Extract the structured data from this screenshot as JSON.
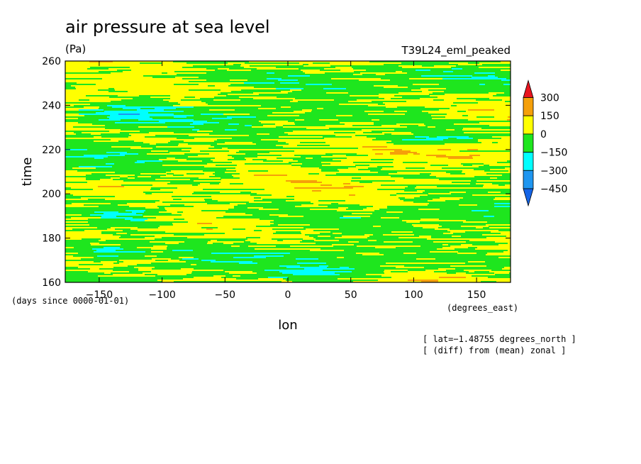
{
  "chart_data": {
    "type": "heatmap",
    "title": "air pressure at sea level",
    "subtitle": "(Pa)",
    "run_label": "T39L24_eml_peaked",
    "xlabel": "lon",
    "x_units": "(degrees_east)",
    "ylabel": "time",
    "y_units": "(days since 0000-01-01)",
    "xlim": [
      -177,
      177
    ],
    "ylim": [
      160,
      260
    ],
    "x_ticks": [
      "-150",
      "-100",
      "-50",
      "0",
      "50",
      "100",
      "150"
    ],
    "x_tick_values": [
      -150,
      -100,
      -50,
      0,
      50,
      100,
      150
    ],
    "y_ticks": [
      "160",
      "180",
      "200",
      "220",
      "240",
      "260"
    ],
    "y_tick_values": [
      160,
      180,
      200,
      220,
      240,
      260
    ],
    "colorbar": {
      "labels": [
        "300",
        "150",
        "0",
        "−150",
        "−300",
        "−450"
      ],
      "colors": [
        "#e8141e",
        "#f5a00a",
        "#ffff00",
        "#1ee61e",
        "#00ffff",
        "#1e96f0",
        "#1464e6"
      ],
      "intervals": [
        ">300",
        "150..300",
        "0..150",
        "-150..0",
        "-300..-150",
        "-450..-300",
        "<-450"
      ]
    },
    "notes": [
      "[ lat=−1.48755 degrees_north ]",
      "[ (diff) from (mean) zonal ]"
    ],
    "field_summary": "zonal anomaly of sea-level pressure, mostly between -150 and 150 Pa; bands of -300..-150 Pa near days 170-178 and 185-195 around lon -150..-100, and near days 233-240 around lon -160..-100; values above 300 Pa occur only in thin streaks",
    "grid": false
  }
}
